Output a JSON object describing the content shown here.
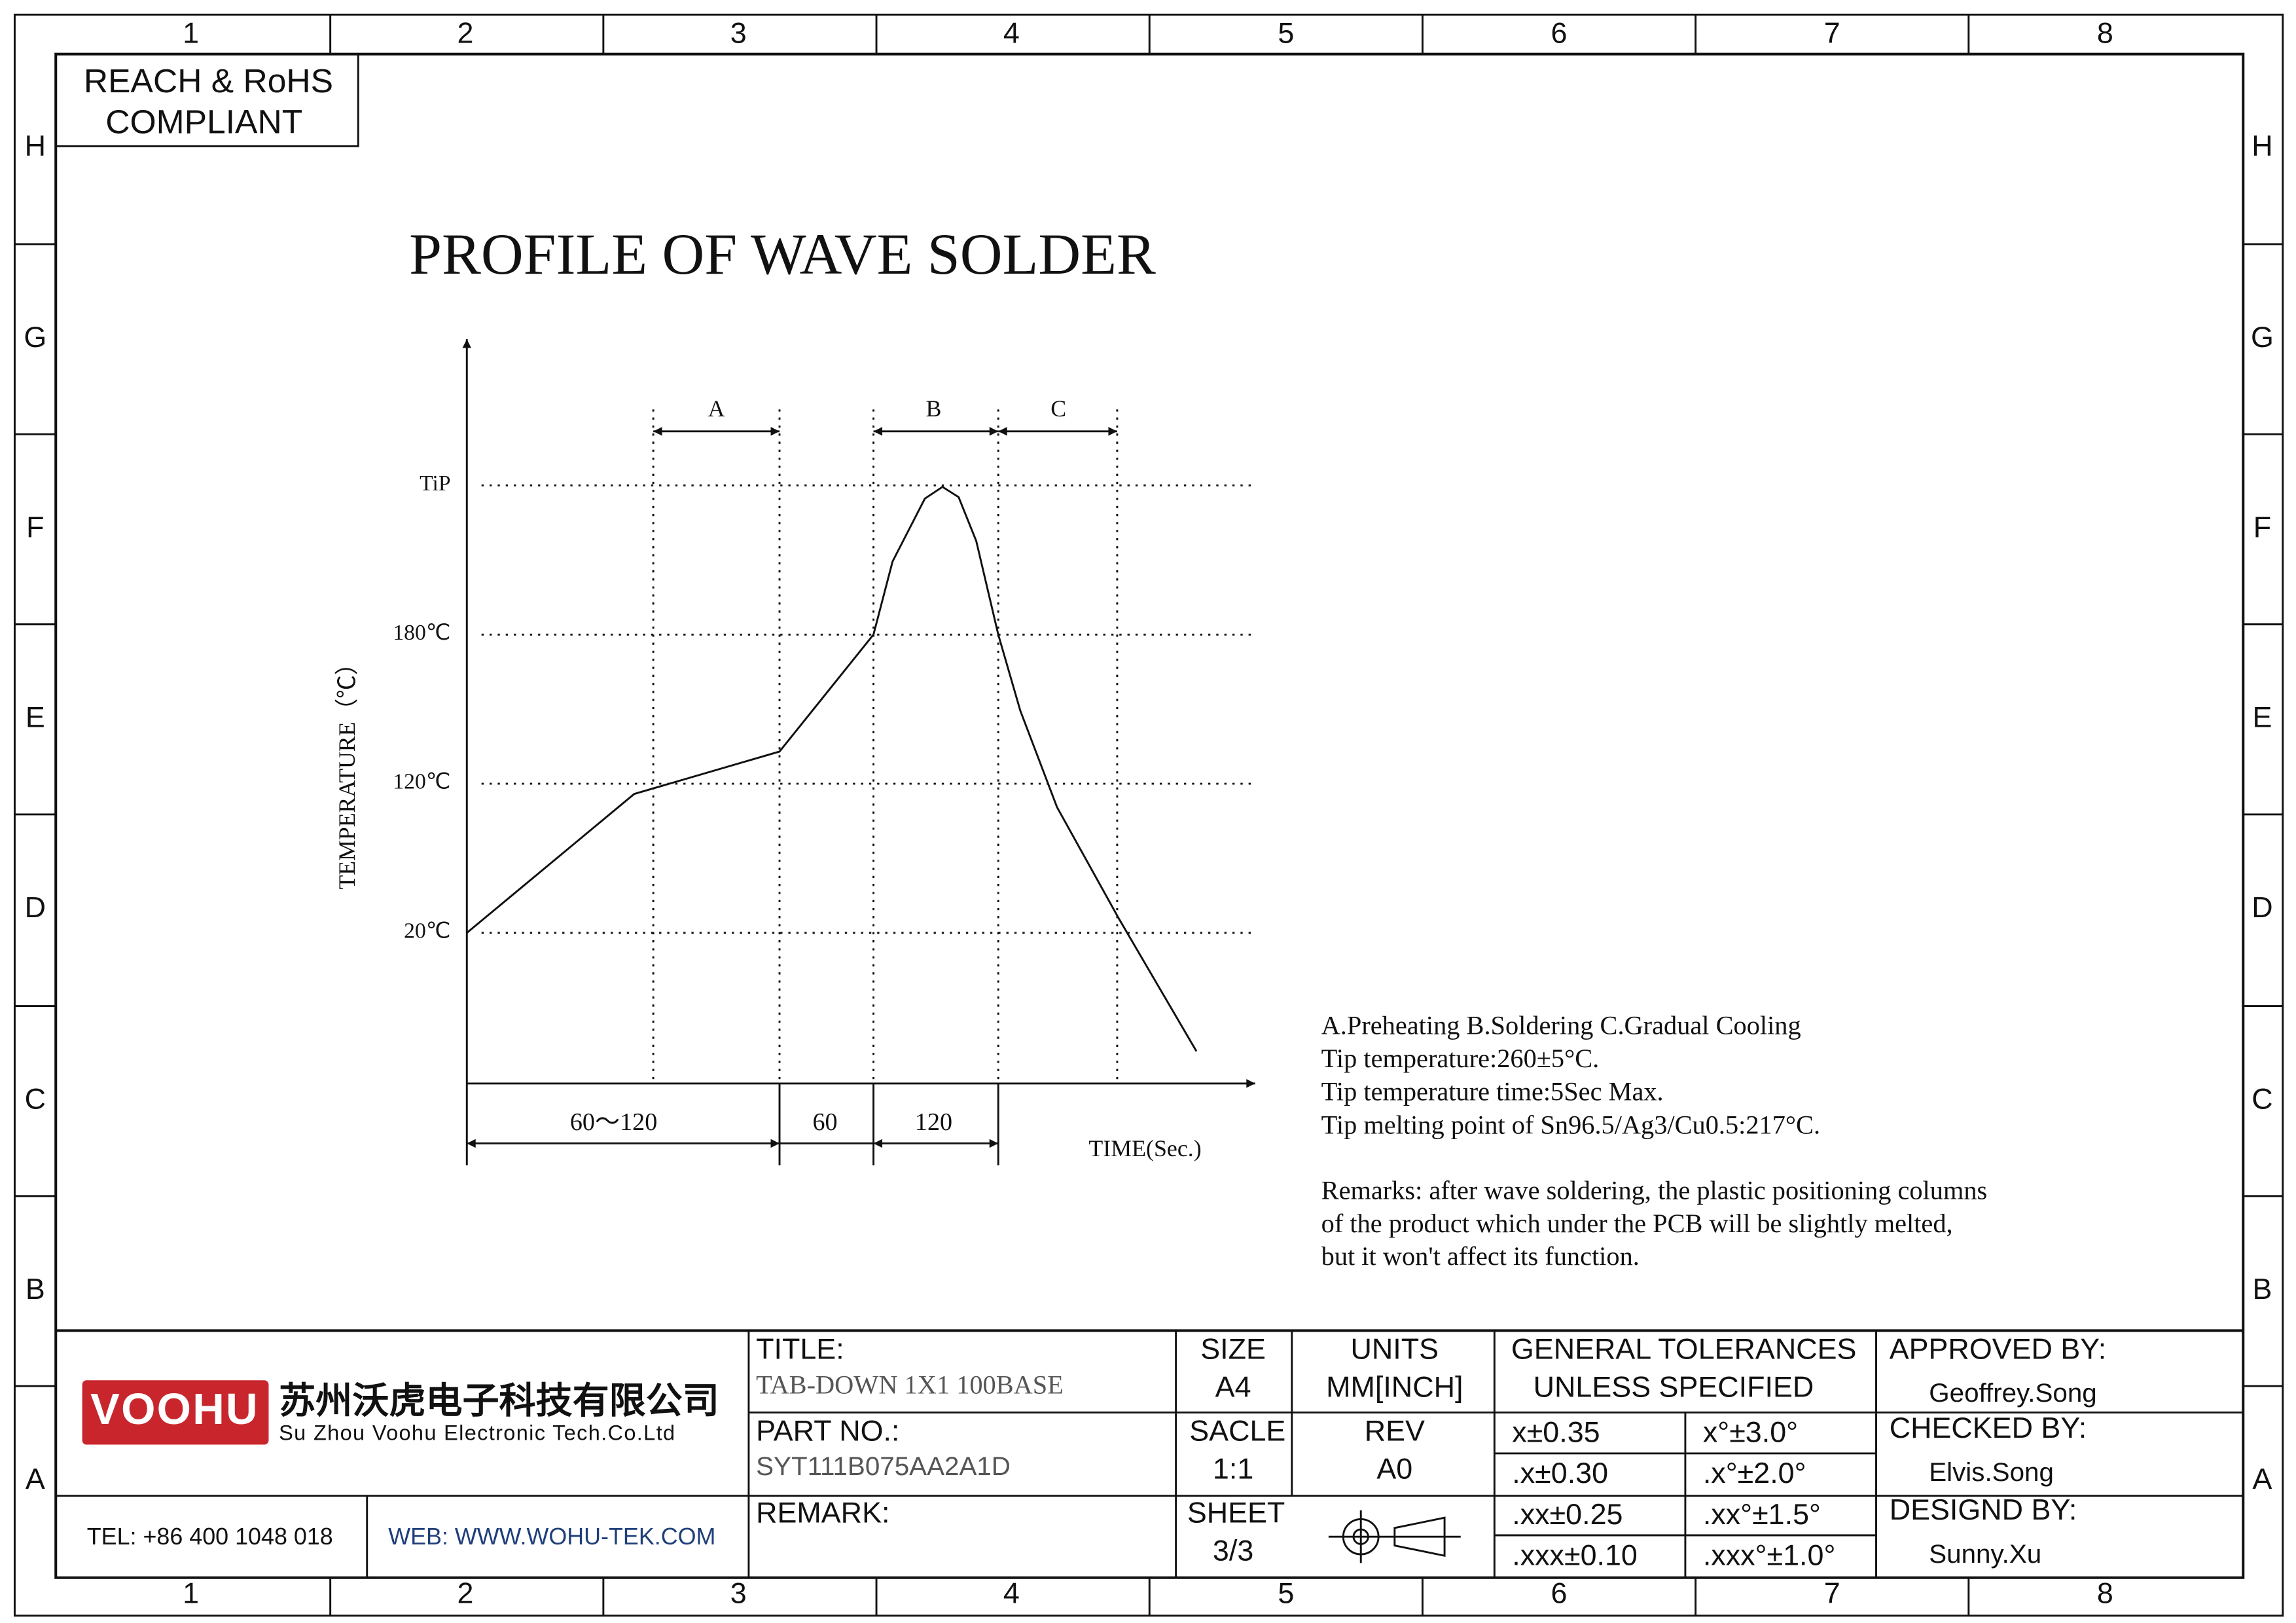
{
  "compliance": [
    "REACH & RoHS",
    "COMPLIANT"
  ],
  "border": {
    "columns": [
      "1",
      "2",
      "3",
      "4",
      "5",
      "6",
      "7",
      "8"
    ],
    "rows": [
      "H",
      "G",
      "F",
      "E",
      "D",
      "C",
      "B",
      "A"
    ]
  },
  "profile": {
    "title": "PROFILE OF WAVE SOLDER",
    "y_label": "TEMPERATURE（℃）",
    "y_levels": [
      "TiP",
      "180℃",
      "120℃",
      "20℃"
    ],
    "zones": [
      "A",
      "B",
      "C"
    ],
    "durations": [
      "60～120",
      "60",
      "120"
    ],
    "x_label": "TIME(Sec.)"
  },
  "notes": [
    "A.Preheating  B.Soldering  C.Gradual Cooling",
    "Tip temperature:260±5°C.",
    "Tip temperature time:5Sec Max.",
    "Tip melting point of Sn96.5/Ag3/Cu0.5:217°C."
  ],
  "remarks": [
    "Remarks: after wave soldering, the plastic positioning columns",
    "of the product  which under the PCB will be slightly melted,",
    "but it won't affect its function."
  ],
  "title_block": {
    "logo": "VOOHU",
    "company_cn": "苏州沃虎电子科技有限公司",
    "company_en": "Su Zhou Voohu Electronic Tech.Co.Ltd",
    "tel": "TEL: +86 400 1048 018",
    "web": "WEB: WWW.WOHU-TEK.COM",
    "title_label": "TITLE:",
    "title": "TAB-DOWN 1X1 100BASE",
    "part_label": "PART NO.:",
    "part": "SYT111B075AA2A1D",
    "remark_label": "REMARK:",
    "size_label": "SIZE",
    "size": "A4",
    "units_label": "UNITS",
    "units": "MM[INCH]",
    "scale_label": "SACLE",
    "scale": "1:1",
    "rev_label": "REV",
    "rev": "A0",
    "sheet_label": "SHEET",
    "sheet": "3/3",
    "tolerance_title": [
      "GENERAL TOLERANCES",
      "UNLESS SPECIFIED"
    ],
    "tolerances": [
      [
        "x±0.35",
        "x°±3.0°"
      ],
      [
        ".x±0.30",
        ".x°±2.0°"
      ],
      [
        ".xx±0.25",
        ".xx°±1.5°"
      ],
      [
        ".xxx±0.10",
        ".xxx°±1.0°"
      ]
    ],
    "approved_label": "APPROVED BY:",
    "approved": "Geoffrey.Song",
    "checked_label": "CHECKED BY:",
    "checked": "Elvis.Song",
    "designed_label": "DESIGND BY:",
    "designed": "Sunny.Xu"
  }
}
